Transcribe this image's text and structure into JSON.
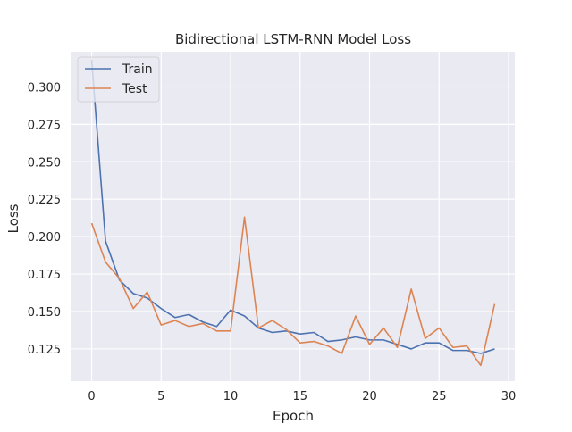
{
  "chart_data": {
    "type": "line",
    "title": "Bidirectional LSTM-RNN Model Loss",
    "xlabel": "Epoch",
    "ylabel": "Loss",
    "xlim": [
      -1.45,
      30.45
    ],
    "ylim": [
      0.1035,
      0.3235
    ],
    "xticks": [
      0,
      5,
      10,
      15,
      20,
      25,
      30
    ],
    "yticks": [
      0.125,
      0.15,
      0.175,
      0.2,
      0.225,
      0.25,
      0.275,
      0.3
    ],
    "xtick_labels": [
      "0",
      "5",
      "10",
      "15",
      "20",
      "25",
      "30"
    ],
    "ytick_labels": [
      "0.125",
      "0.150",
      "0.175",
      "0.200",
      "0.225",
      "0.250",
      "0.275",
      "0.300"
    ],
    "grid": true,
    "background": "#eaeaf2",
    "legend_placement": "upper-left",
    "x": [
      0,
      1,
      2,
      3,
      4,
      5,
      6,
      7,
      8,
      9,
      10,
      11,
      12,
      13,
      14,
      15,
      16,
      17,
      18,
      19,
      20,
      21,
      22,
      23,
      24,
      25,
      26,
      27,
      28,
      29
    ],
    "series": [
      {
        "name": "Train",
        "color": "#4c72b0",
        "values": [
          0.318,
          0.197,
          0.171,
          0.162,
          0.159,
          0.152,
          0.146,
          0.148,
          0.143,
          0.14,
          0.151,
          0.147,
          0.139,
          0.136,
          0.137,
          0.135,
          0.136,
          0.13,
          0.131,
          0.133,
          0.131,
          0.131,
          0.128,
          0.125,
          0.129,
          0.129,
          0.124,
          0.124,
          0.122,
          0.125
        ]
      },
      {
        "name": "Test",
        "color": "#dd8452",
        "values": [
          0.209,
          0.183,
          0.172,
          0.152,
          0.163,
          0.141,
          0.144,
          0.14,
          0.142,
          0.137,
          0.137,
          0.213,
          0.139,
          0.144,
          0.138,
          0.129,
          0.13,
          0.127,
          0.122,
          0.147,
          0.128,
          0.139,
          0.126,
          0.165,
          0.132,
          0.139,
          0.126,
          0.127,
          0.114,
          0.155
        ]
      }
    ]
  }
}
